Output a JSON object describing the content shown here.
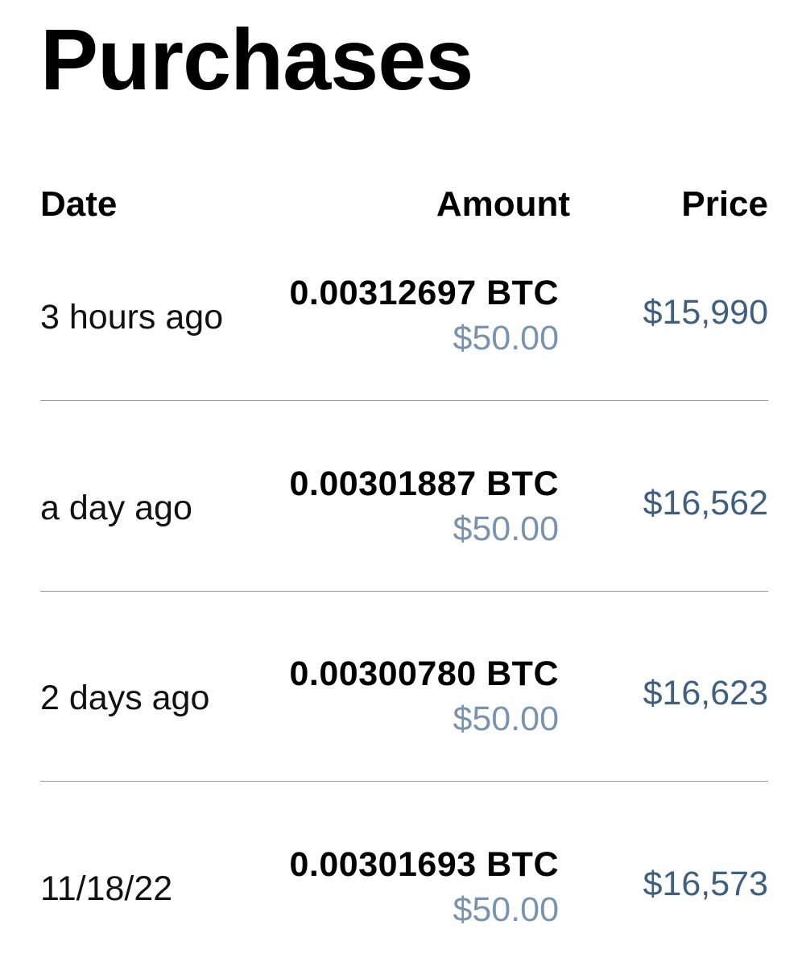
{
  "page": {
    "title": "Purchases"
  },
  "colors": {
    "text": "#000000",
    "usd_muted": "#7a93ad",
    "price": "#3f5f80",
    "divider": "#9a9a9a"
  },
  "table": {
    "headers": {
      "date": "Date",
      "amount": "Amount",
      "price": "Price"
    },
    "rows": [
      {
        "date": "3 hours ago",
        "btc": "0.00312697 BTC",
        "usd": "$50.00",
        "price": "$15,990"
      },
      {
        "date": "a day ago",
        "btc": "0.00301887 BTC",
        "usd": "$50.00",
        "price": "$16,562"
      },
      {
        "date": "2 days ago",
        "btc": "0.00300780 BTC",
        "usd": "$50.00",
        "price": "$16,623"
      },
      {
        "date": "11/18/22",
        "btc": "0.00301693 BTC",
        "usd": "$50.00",
        "price": "$16,573"
      }
    ]
  }
}
